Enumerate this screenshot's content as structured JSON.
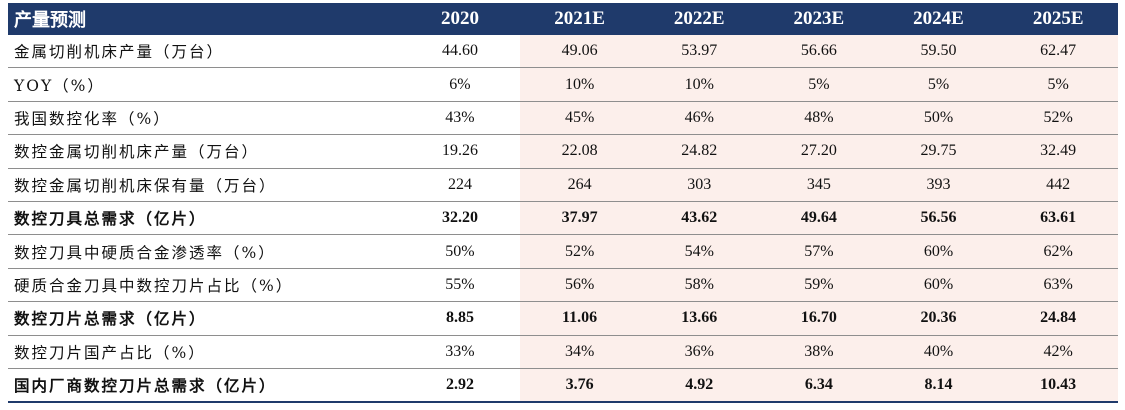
{
  "header": {
    "label": "产量预测",
    "years": [
      "2020",
      "2021E",
      "2022E",
      "2023E",
      "2024E",
      "2025E"
    ]
  },
  "rows": [
    {
      "label": "金属切削机床产量（万台）",
      "values": [
        "44.60",
        "49.06",
        "53.97",
        "56.66",
        "59.50",
        "62.47"
      ],
      "bold": false
    },
    {
      "label": "YOY（%）",
      "values": [
        "6%",
        "10%",
        "10%",
        "5%",
        "5%",
        "5%"
      ],
      "bold": false
    },
    {
      "label": "我国数控化率（%）",
      "values": [
        "43%",
        "45%",
        "46%",
        "48%",
        "50%",
        "52%"
      ],
      "bold": false
    },
    {
      "label": "数控金属切削机床产量（万台）",
      "values": [
        "19.26",
        "22.08",
        "24.82",
        "27.20",
        "29.75",
        "32.49"
      ],
      "bold": false
    },
    {
      "label": "数控金属切削机床保有量（万台）",
      "values": [
        "224",
        "264",
        "303",
        "345",
        "393",
        "442"
      ],
      "bold": false
    },
    {
      "label": "数控刀具总需求（亿片）",
      "values": [
        "32.20",
        "37.97",
        "43.62",
        "49.64",
        "56.56",
        "63.61"
      ],
      "bold": true
    },
    {
      "label": "数控刀具中硬质合金渗透率（%）",
      "values": [
        "50%",
        "52%",
        "54%",
        "57%",
        "60%",
        "62%"
      ],
      "bold": false
    },
    {
      "label": "硬质合金刀具中数控刀片占比（%）",
      "values": [
        "55%",
        "56%",
        "58%",
        "59%",
        "60%",
        "63%"
      ],
      "bold": false
    },
    {
      "label": "数控刀片总需求（亿片）",
      "values": [
        "8.85",
        "11.06",
        "13.66",
        "16.70",
        "20.36",
        "24.84"
      ],
      "bold": true
    },
    {
      "label": "数控刀片国产占比（%）",
      "values": [
        "33%",
        "34%",
        "36%",
        "38%",
        "40%",
        "42%"
      ],
      "bold": false
    },
    {
      "label": "国内厂商数控刀片总需求（亿片）",
      "values": [
        "2.92",
        "3.76",
        "4.92",
        "6.34",
        "8.14",
        "10.43"
      ],
      "bold": true
    }
  ],
  "colors": {
    "header_bg": "#1f3a6b",
    "estimate_bg": "#fcefeb",
    "row_line": "#8e8e8e"
  }
}
